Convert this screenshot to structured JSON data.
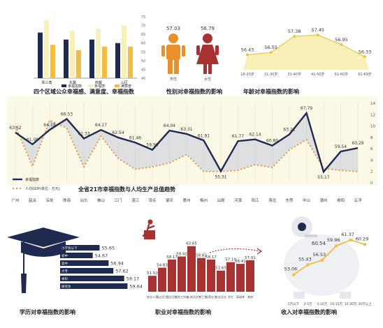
{
  "colors": {
    "navy": "#1e2a4f",
    "gold": "#f2bd45",
    "cream": "#f8f0b6",
    "orange": "#e8902a",
    "red": "#a83232",
    "panel": "#f6f4ea",
    "band": "#fbf8e6"
  },
  "chart_data": [
    {
      "type": "bar",
      "title": "四个区域公众幸福感、满意度、幸福指数",
      "categories": [
        "珠三角",
        "东翼",
        "西翼",
        "山区"
      ],
      "series": [
        {
          "name": "幸福指数",
          "values": [
            66,
            62,
            62,
            60
          ]
        },
        {
          "name": "幸福感",
          "values": [
            73,
            67,
            68,
            70
          ]
        },
        {
          "name": "满意度",
          "values": [
            59,
            56,
            58,
            58
          ]
        }
      ],
      "ylim": [
        40,
        75
      ],
      "yticks": [
        "75",
        "70",
        "65",
        "60",
        "55",
        "50",
        "45",
        "40"
      ]
    },
    {
      "type": "bar",
      "title": "性别对幸福指数的影响",
      "categories": [
        "男性",
        "女性"
      ],
      "values": [
        57.03,
        56.79
      ],
      "value_labels": [
        "57.03",
        "56.79"
      ]
    },
    {
      "type": "area",
      "title": "年龄对幸福指数的影响",
      "categories": [
        "18-20岁",
        "21-30岁",
        "31-40岁",
        "41-50岁",
        "51-60岁",
        "61-69岁"
      ],
      "values": [
        56.43,
        56.55,
        57.38,
        57.45,
        56.95,
        56.33
      ],
      "value_labels": [
        "56.43",
        "56.55",
        "57.38",
        "57.45",
        "56.95",
        "56.33"
      ]
    },
    {
      "type": "line",
      "title": "全省21市幸福指数与人均生产总值趋势",
      "categories": [
        "广州",
        "韶关",
        "深圳",
        "珠海",
        "汕头",
        "佛山",
        "江门",
        "湛江",
        "茂名",
        "肇庆",
        "惠州",
        "梅州",
        "汕尾",
        "河源",
        "阳江",
        "清远",
        "东莞",
        "中山",
        "潮州",
        "揭阳",
        "云浮"
      ],
      "series": [
        {
          "name": "幸福指数",
          "values": [
            63.62,
            61.08,
            64.19,
            66.53,
            62.33,
            64.17,
            62.54,
            61.46,
            59.9,
            64.04,
            63.31,
            61.91,
            55.31,
            61.77,
            62.14,
            60.8,
            63.21,
            67.79,
            55.17,
            59.54,
            60.29
          ]
        },
        {
          "name": "人均GDP(单位：万元)",
          "values": [
            10.0,
            2.9,
            11.0,
            9.6,
            2.8,
            8.2,
            4.3,
            2.4,
            2.8,
            3.5,
            5.0,
            2.0,
            2.0,
            2.2,
            3.2,
            2.7,
            5.8,
            7.6,
            2.5,
            2.2,
            2.0
          ]
        }
      ],
      "value_labels": [
        "63.62",
        "61.08",
        "64.19",
        "66.53",
        "62.33",
        "64.17",
        "62.54",
        "61.46",
        "59.90",
        "64.04",
        "63.31",
        "61.91",
        "55.31",
        "61.77",
        "62.14",
        "60.80",
        "63.21",
        "67.79",
        "55.17",
        "59.54",
        "60.29"
      ],
      "y2_ticks": [
        "14",
        "12",
        "10",
        "8",
        "6",
        "4",
        "2",
        "0"
      ],
      "y2lim": [
        0,
        14
      ]
    },
    {
      "type": "bar",
      "title": "学历对幸福指数的影响",
      "categories": [
        "小学及以下",
        "初中",
        "高中",
        "大专",
        "本科",
        "研究生"
      ],
      "values": [
        55.65,
        54.67,
        56.94,
        57.62,
        59.17,
        59.64
      ],
      "value_labels": [
        "55.65",
        "54.67",
        "56.94",
        "57.62",
        "59.17",
        "59.64"
      ]
    },
    {
      "type": "bar",
      "title": "职业对幸福指数的影响",
      "categories": [
        "农业人员",
        "私企员工",
        "国企员工",
        "机关工作者",
        "公务员",
        "文教卫生",
        "私营业主",
        "失业无业",
        "学生",
        "离退休",
        "其他"
      ],
      "values": [
        51.52,
        54.83,
        58.17,
        59.42,
        63.65,
        58.82,
        58.17,
        53.65,
        57.1,
        56.41,
        57.91
      ],
      "value_labels": [
        "51.52",
        "54.83",
        "58.17",
        "59.42",
        "63.65",
        "58.82",
        "58.17",
        "53.65",
        "57.10",
        "56.41",
        "57.91"
      ]
    },
    {
      "type": "line",
      "title": "收入对幸福指数的影响",
      "categories": [
        "2万以下",
        "2-5万",
        "5-10万",
        "10-15万",
        "15-30万",
        "30万以上"
      ],
      "values": [
        53.06,
        55.43,
        56.53,
        59.96,
        61.37,
        60.29
      ],
      "value_labels": [
        "53.06",
        "55.43",
        "56.53",
        "59.96",
        "61.37",
        "60.29"
      ],
      "extra_labels": [
        "60.54"
      ]
    }
  ]
}
